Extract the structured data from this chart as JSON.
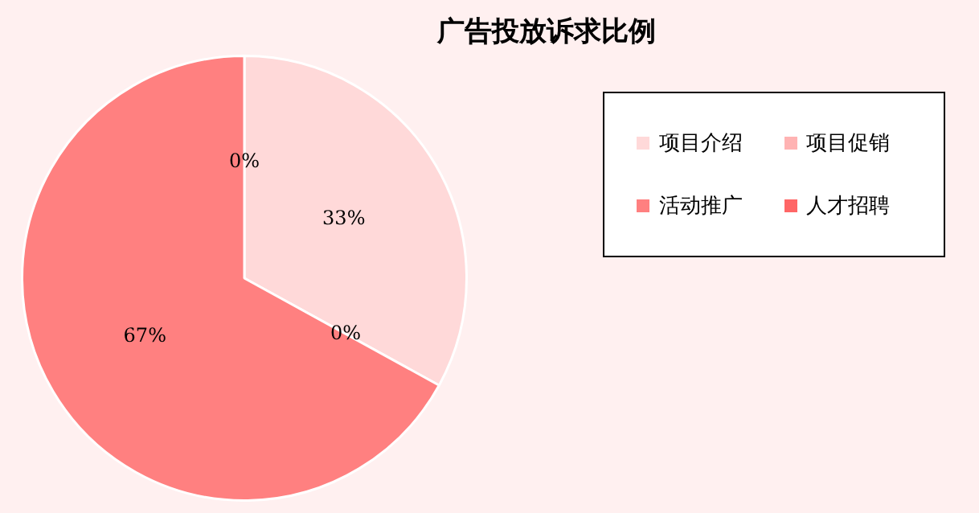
{
  "chart_data": {
    "type": "pie",
    "title": "广告投放诉求比例",
    "categories": [
      "项目介绍",
      "项目促销",
      "活动推广",
      "人才招聘"
    ],
    "values": [
      33,
      0,
      67,
      0
    ],
    "colors": [
      "#ffd9d9",
      "#ffb3b3",
      "#ff8080",
      "#ff6666"
    ],
    "value_labels": [
      "33%",
      "0%",
      "67%",
      "0%"
    ],
    "legend": "right"
  }
}
